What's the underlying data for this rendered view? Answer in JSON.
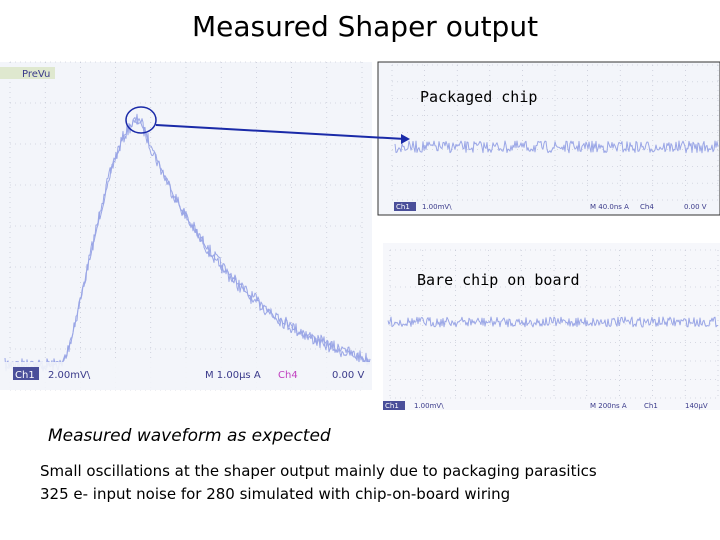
{
  "title": "Measured Shaper output",
  "scope_main": {
    "mode": "PreVu",
    "channel": "Ch1",
    "scale": "2.00mV\\",
    "timebase": "M 1.00µs A",
    "trigger_channel": "Ch4",
    "trigger_level": "0.00 V"
  },
  "scope_packaged": {
    "label": "Packaged chip",
    "channel": "Ch1",
    "scale": "1.00mV\\",
    "timebase": "M 40.0ns A",
    "trigger_channel": "Ch4",
    "trigger_level": "0.00 V"
  },
  "scope_bare": {
    "label": "Bare chip on board",
    "channel": "Ch1",
    "scale": "1.00mV\\",
    "timebase": "M 200ns A",
    "trigger_channel": "Ch1",
    "trigger_level": "140µV"
  },
  "caption": "Measured waveform as expected",
  "notes": [
    "Small oscillations at the shaper output mainly due to packaging parasitics",
    "325 e- input noise for 280 simulated with chip-on-board wiring"
  ]
}
